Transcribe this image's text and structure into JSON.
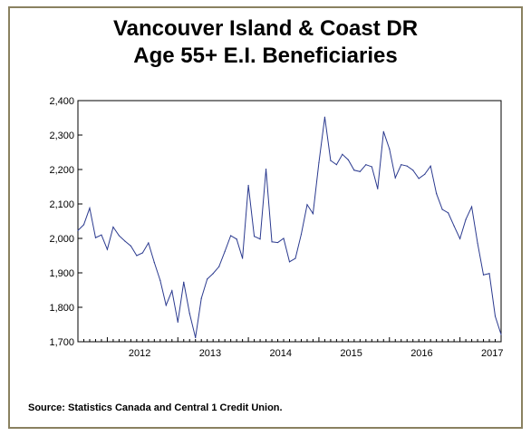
{
  "page": {
    "title_line1": "Vancouver Island & Coast DR",
    "title_line2": "Age 55+ E.I. Beneficiaries",
    "source": "Source: Statistics Canada and Central 1 Credit Union."
  },
  "colors": {
    "frame": "#8a8160",
    "line": "#2b3a8f",
    "text": "#000000"
  },
  "chart_data": {
    "type": "line",
    "title": "Vancouver Island & Coast DR Age 55+ E.I. Beneficiaries",
    "xlabel": "",
    "ylabel": "",
    "ylim": [
      1700,
      2400
    ],
    "yticks": [
      1700,
      1800,
      1900,
      2000,
      2100,
      2200,
      2300,
      2400
    ],
    "ytick_labels": [
      "1,700",
      "1,800",
      "1,900",
      "2,000",
      "2,100",
      "2,200",
      "2,300",
      "2,400"
    ],
    "x_start": "2011-08",
    "x_end": "2017-08",
    "year_labels": [
      "2012",
      "2013",
      "2014",
      "2015",
      "2016",
      "2017"
    ],
    "grid": false,
    "series": [
      {
        "values": [
          2023,
          2040,
          2088,
          2002,
          2010,
          1968,
          2033,
          2008,
          1992,
          1978,
          1950,
          1958,
          1987,
          1930,
          1878,
          1806,
          1848,
          1757,
          1873,
          1782,
          1712,
          1826,
          1882,
          1898,
          1918,
          1962,
          2008,
          1998,
          1942,
          2154,
          2006,
          1998,
          2201,
          1990,
          1988,
          2000,
          1932,
          1942,
          2012,
          2098,
          2072,
          2220,
          2352,
          2226,
          2214,
          2244,
          2228,
          2198,
          2194,
          2214,
          2208,
          2144,
          2310,
          2260,
          2176,
          2214,
          2210,
          2198,
          2174,
          2186,
          2210,
          2130,
          2084,
          2074,
          2036,
          1999,
          2055,
          2092,
          1986,
          1894,
          1898,
          1774,
          1721
        ]
      }
    ]
  }
}
